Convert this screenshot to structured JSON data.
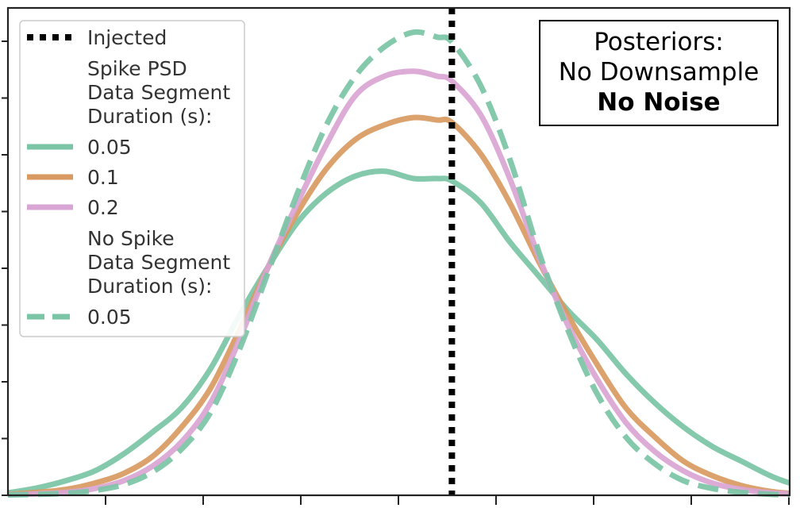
{
  "chart_data": {
    "type": "line",
    "title": "",
    "xlabel": "",
    "ylabel": "",
    "xlim": [
      -4.6,
      3.5
    ],
    "ylim": [
      0,
      1.0
    ],
    "grid": false,
    "injected": {
      "name": "Injected",
      "x": 0,
      "color": "#000000",
      "style": "dotted"
    },
    "legend": {
      "placement": "top-left",
      "entries": [
        {
          "kind": "line",
          "label": "Injected",
          "color": "#000000",
          "style": "dotted"
        },
        {
          "kind": "heading",
          "label": "Spike PSD"
        },
        {
          "kind": "heading",
          "label": "Data Segment"
        },
        {
          "kind": "heading",
          "label": "Duration (s):"
        },
        {
          "kind": "line",
          "label": "0.05",
          "color": "#7bc4a6",
          "style": "solid"
        },
        {
          "kind": "line",
          "label": "0.1",
          "color": "#d99a62",
          "style": "solid"
        },
        {
          "kind": "line",
          "label": "0.2",
          "color": "#d9a5d4",
          "style": "solid"
        },
        {
          "kind": "heading",
          "label": "No Spike"
        },
        {
          "kind": "heading",
          "label": "Data Segment"
        },
        {
          "kind": "heading",
          "label": "Duration (s):"
        },
        {
          "kind": "line",
          "label": "0.05",
          "color": "#7bc4a6",
          "style": "dashed"
        }
      ]
    },
    "annotation": {
      "placement": "top-right",
      "lines": [
        "Posteriors:",
        "No Downsample"
      ],
      "bold_line": "No Noise"
    },
    "series": [
      {
        "label": "0.05",
        "group": "Spike PSD",
        "color": "#7bc4a6",
        "style": "solid",
        "x": [
          -4.6,
          -4.3,
          -4.0,
          -3.7,
          -3.4,
          -3.1,
          -2.8,
          -2.5,
          -2.2,
          -1.9,
          -1.6,
          -1.3,
          -1.0,
          -0.7,
          -0.4,
          -0.15,
          0.0,
          0.3,
          0.6,
          0.9,
          1.2,
          1.5,
          1.8,
          2.1,
          2.4,
          2.7,
          3.0,
          3.3,
          3.5
        ],
        "y": [
          0.005,
          0.015,
          0.03,
          0.05,
          0.085,
          0.13,
          0.18,
          0.26,
          0.37,
          0.47,
          0.56,
          0.62,
          0.655,
          0.665,
          0.65,
          0.65,
          0.645,
          0.6,
          0.52,
          0.45,
          0.38,
          0.32,
          0.25,
          0.19,
          0.14,
          0.1,
          0.07,
          0.04,
          0.025
        ]
      },
      {
        "label": "0.1",
        "group": "Spike PSD",
        "color": "#d99a62",
        "style": "solid",
        "x": [
          -4.6,
          -4.3,
          -4.0,
          -3.7,
          -3.4,
          -3.1,
          -2.8,
          -2.5,
          -2.2,
          -1.9,
          -1.6,
          -1.3,
          -1.0,
          -0.7,
          -0.4,
          -0.15,
          0.0,
          0.3,
          0.6,
          0.9,
          1.2,
          1.5,
          1.8,
          2.1,
          2.4,
          2.7,
          3.0,
          3.3,
          3.5
        ],
        "y": [
          0.002,
          0.006,
          0.012,
          0.025,
          0.045,
          0.08,
          0.14,
          0.22,
          0.34,
          0.47,
          0.58,
          0.67,
          0.73,
          0.76,
          0.775,
          0.77,
          0.765,
          0.7,
          0.6,
          0.48,
          0.37,
          0.27,
          0.18,
          0.12,
          0.07,
          0.04,
          0.02,
          0.008,
          0.004
        ]
      },
      {
        "label": "0.2",
        "group": "Spike PSD",
        "color": "#d9a5d4",
        "style": "solid",
        "x": [
          -4.6,
          -4.3,
          -4.0,
          -3.7,
          -3.4,
          -3.1,
          -2.8,
          -2.5,
          -2.2,
          -1.9,
          -1.6,
          -1.3,
          -1.0,
          -0.7,
          -0.4,
          -0.15,
          0.0,
          0.3,
          0.6,
          0.9,
          1.2,
          1.5,
          1.8,
          2.1,
          2.4,
          2.7,
          3.0,
          3.3,
          3.5
        ],
        "y": [
          0.001,
          0.003,
          0.006,
          0.014,
          0.03,
          0.06,
          0.11,
          0.19,
          0.32,
          0.47,
          0.6,
          0.72,
          0.82,
          0.86,
          0.87,
          0.86,
          0.85,
          0.78,
          0.65,
          0.49,
          0.35,
          0.24,
          0.15,
          0.09,
          0.05,
          0.025,
          0.012,
          0.005,
          0.003
        ]
      },
      {
        "label": "0.05",
        "group": "No Spike",
        "color": "#7bc4a6",
        "style": "dashed",
        "x": [
          -4.6,
          -4.3,
          -4.0,
          -3.7,
          -3.4,
          -3.1,
          -2.8,
          -2.5,
          -2.2,
          -1.9,
          -1.6,
          -1.3,
          -1.0,
          -0.7,
          -0.4,
          -0.15,
          0.0,
          0.3,
          0.6,
          0.9,
          1.2,
          1.5,
          1.8,
          2.1,
          2.4,
          2.7,
          3.0,
          3.3,
          3.5
        ],
        "y": [
          0.001,
          0.002,
          0.004,
          0.01,
          0.022,
          0.048,
          0.095,
          0.17,
          0.3,
          0.46,
          0.62,
          0.76,
          0.86,
          0.92,
          0.95,
          0.94,
          0.93,
          0.84,
          0.69,
          0.5,
          0.34,
          0.21,
          0.12,
          0.065,
          0.03,
          0.014,
          0.006,
          0.002,
          0.001
        ]
      }
    ],
    "x_ticks_count": 8,
    "y_ticks_count": 9
  }
}
